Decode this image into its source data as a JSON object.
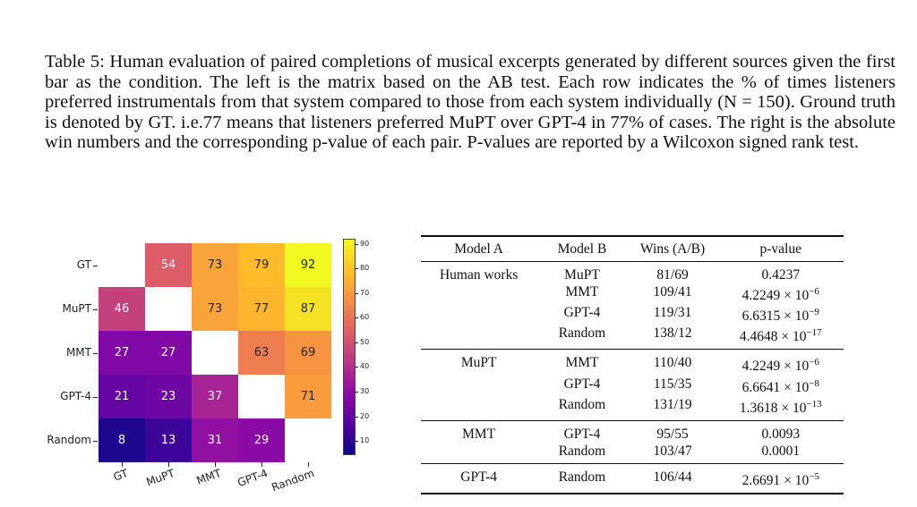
{
  "caption": {
    "lead": "Table 5: Human evaluation of paired completions of musical excerpts generated by different sources given the first bar as the condition. The left is the matrix based on the AB test. Each row indicates the % of times listeners preferred instrumentals from that system compared to those from each system individually (N = 150). Ground truth is denoted by GT. i.e.77 means that listeners preferred MuPT over GPT-4 in 77% of cases. The right is the absolute win numbers and the corresponding p-value of each pair. P-values are reported by a Wilcoxon signed rank test."
  },
  "chart_data": {
    "type": "heatmap",
    "rows": [
      "GT",
      "MuPT",
      "MMT",
      "GPT-4",
      "Random"
    ],
    "columns": [
      "GT",
      "MuPT",
      "MMT",
      "GPT-4",
      "Random"
    ],
    "values": [
      [
        null,
        54,
        73,
        79,
        92
      ],
      [
        46,
        null,
        73,
        77,
        87
      ],
      [
        27,
        27,
        null,
        63,
        69
      ],
      [
        21,
        23,
        37,
        null,
        71
      ],
      [
        8,
        13,
        31,
        29,
        null
      ]
    ],
    "colorbar": {
      "min": 5,
      "max": 92,
      "ticks": [
        10,
        20,
        30,
        40,
        50,
        60,
        70,
        80,
        90
      ],
      "colormap": "plasma"
    }
  },
  "table": {
    "headers": [
      "Model A",
      "Model B",
      "Wins (A/B)",
      "p-value"
    ],
    "groups": [
      {
        "model_a": "Human works",
        "rows": [
          {
            "b": "MuPT",
            "wins": "81/69",
            "p": "0.4237"
          },
          {
            "b": "MMT",
            "wins": "109/41",
            "p": "4.2249 × 10",
            "exp": "−6"
          },
          {
            "b": "GPT-4",
            "wins": "119/31",
            "p": "6.6315 × 10",
            "exp": "−9"
          },
          {
            "b": "Random",
            "wins": "138/12",
            "p": "4.4648 × 10",
            "exp": "−17"
          }
        ]
      },
      {
        "model_a": "MuPT",
        "rows": [
          {
            "b": "MMT",
            "wins": "110/40",
            "p": "4.2249 × 10",
            "exp": "−6"
          },
          {
            "b": "GPT-4",
            "wins": "115/35",
            "p": "6.6641 × 10",
            "exp": "−8"
          },
          {
            "b": "Random",
            "wins": "131/19",
            "p": "1.3618 × 10",
            "exp": "−13"
          }
        ]
      },
      {
        "model_a": "MMT",
        "rows": [
          {
            "b": "GPT-4",
            "wins": "95/55",
            "p": "0.0093"
          },
          {
            "b": "Random",
            "wins": "103/47",
            "p": "0.0001"
          }
        ]
      },
      {
        "model_a": "GPT-4",
        "rows": [
          {
            "b": "Random",
            "wins": "106/44",
            "p": "2.6691 × 10",
            "exp": "−5"
          }
        ]
      }
    ]
  }
}
